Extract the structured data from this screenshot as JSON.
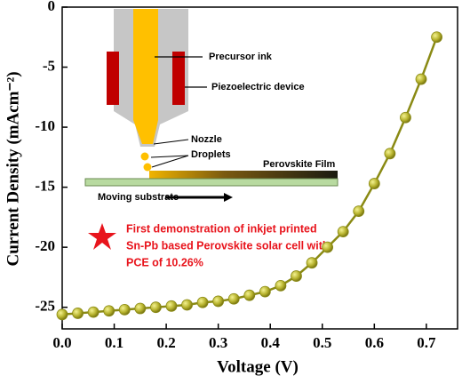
{
  "chart_data": {
    "type": "line",
    "x_label": "Voltage (V)",
    "y_label": "Current Density (mAcm⁻²)",
    "x": [
      0,
      0.03,
      0.06,
      0.09,
      0.12,
      0.15,
      0.18,
      0.21,
      0.24,
      0.27,
      0.3,
      0.33,
      0.36,
      0.39,
      0.42,
      0.45,
      0.48,
      0.51,
      0.54,
      0.57,
      0.6,
      0.63,
      0.66,
      0.69,
      0.72
    ],
    "series": [
      {
        "color": "#8a8a14",
        "values": [
          -25.6,
          -25.5,
          -25.4,
          -25.3,
          -25.2,
          -25.1,
          -25.0,
          -24.9,
          -24.8,
          -24.6,
          -24.5,
          -24.3,
          -24.0,
          -23.7,
          -23.2,
          -22.4,
          -21.3,
          -20.0,
          -18.7,
          -17.0,
          -14.7,
          -12.2,
          -9.2,
          -6.0,
          -2.5
        ]
      }
    ],
    "xlim": [
      0,
      0.76
    ],
    "ylim": [
      -26.8,
      0
    ],
    "xticks": [
      {
        "value": 0,
        "label": "0.0"
      },
      0.1,
      0.2,
      0.3,
      0.4,
      0.5,
      0.6,
      0.7
    ],
    "yticks": [
      -25,
      -20,
      -15,
      -10,
      -5,
      0
    ],
    "inset_labels": [
      "Precursor ink",
      "Piezoelectric device",
      "Nozzle",
      "Droplets",
      "Perovskite Film",
      "Moving substrate"
    ],
    "annotation": [
      "First demonstration of inkjet printed",
      "Sn-Pb based Perovskite solar cell with",
      "PCE of 10.26%"
    ]
  }
}
